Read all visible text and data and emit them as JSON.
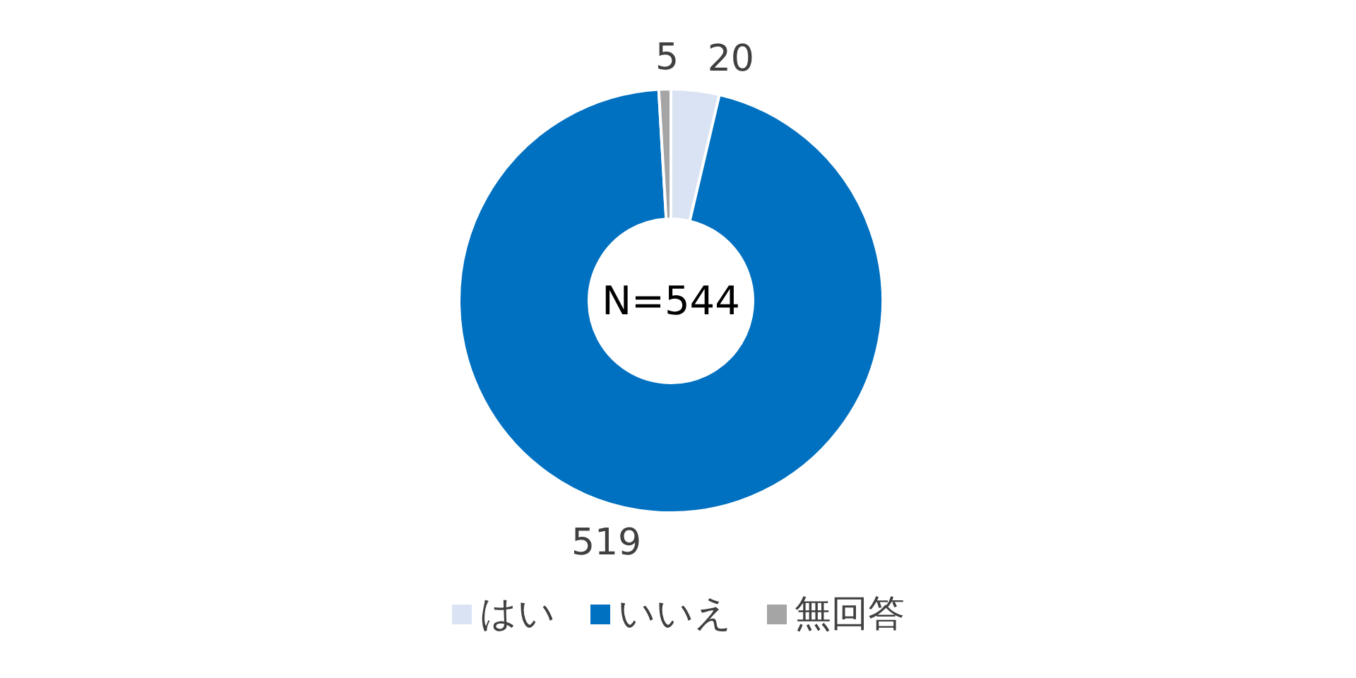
{
  "chart_data": {
    "type": "donut",
    "categories": [
      "はい",
      "いいえ",
      "無回答"
    ],
    "values": [
      20,
      519,
      5
    ],
    "colors": [
      "#dae3f3",
      "#0070c0",
      "#a5a5a5"
    ],
    "data_labels": true,
    "legend": "bottom",
    "annotations": [
      "N=544"
    ]
  }
}
